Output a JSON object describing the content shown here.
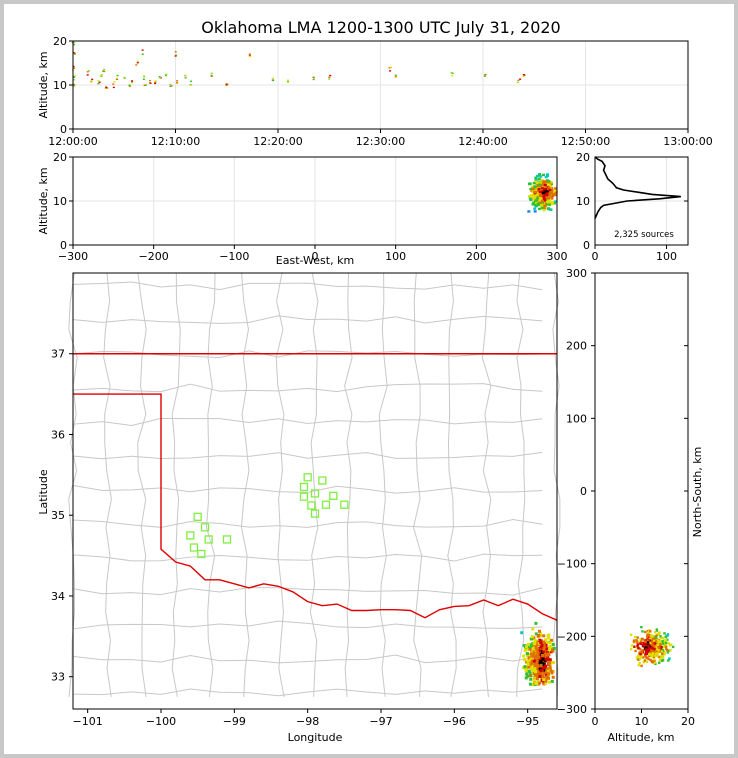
{
  "title": "Oklahoma LMA 1200-1300 UTC July 31, 2020",
  "colors": {
    "state_border": "#e00000",
    "county_lines": "#c8c8c8",
    "histogram": "#000000",
    "station_marker": "#80ee40",
    "density_scale": [
      "#2080e0",
      "#00c8c8",
      "#30c030",
      "#e0e000",
      "#e07000",
      "#d00000",
      "#000000"
    ]
  },
  "chart_data": [
    {
      "id": "time-height",
      "type": "scatter",
      "xlabel": "",
      "ylabel": "Altitude, km",
      "x_ticks": [
        "12:00:00",
        "12:10:00",
        "12:20:00",
        "12:30:00",
        "12:40:00",
        "12:50:00",
        "13:00:00"
      ],
      "xlim_minutes": [
        0,
        60
      ],
      "ylim": [
        0,
        20
      ],
      "y_ticks": [
        0,
        10,
        20
      ],
      "grid": true,
      "note_points_minutes_altitude": [
        [
          0.1,
          19.5
        ],
        [
          0.1,
          17
        ],
        [
          0.1,
          14
        ],
        [
          0.1,
          12
        ],
        [
          0.1,
          10.5
        ],
        [
          0.1,
          9.5
        ],
        [
          1.5,
          13
        ],
        [
          1.8,
          11
        ],
        [
          2.5,
          10.5
        ],
        [
          2.8,
          12
        ],
        [
          3,
          13.5
        ],
        [
          3.3,
          9.5
        ],
        [
          4,
          10
        ],
        [
          4.3,
          11.5
        ],
        [
          5,
          12
        ],
        [
          5.5,
          10
        ],
        [
          5.8,
          11
        ],
        [
          6.2,
          15
        ],
        [
          6.8,
          17.5
        ],
        [
          7,
          12
        ],
        [
          7,
          10
        ],
        [
          7.5,
          11
        ],
        [
          8,
          10.5
        ],
        [
          8.5,
          11.5
        ],
        [
          9,
          12
        ],
        [
          9.5,
          10
        ],
        [
          10,
          17
        ],
        [
          10.2,
          11
        ],
        [
          11,
          12
        ],
        [
          11.5,
          10.5
        ],
        [
          13.5,
          12.5
        ],
        [
          15,
          10
        ],
        [
          17.2,
          17
        ],
        [
          19.5,
          11
        ],
        [
          21,
          11
        ],
        [
          23.5,
          11.5
        ],
        [
          25,
          12
        ],
        [
          31,
          13.5
        ],
        [
          31.5,
          12
        ],
        [
          37,
          12.5
        ],
        [
          40.3,
          12
        ],
        [
          43.5,
          11
        ],
        [
          44,
          12
        ]
      ]
    },
    {
      "id": "ew-height",
      "type": "heatmap",
      "xlabel": "East-West, km",
      "ylabel": "Altitude, km",
      "xlim": [
        -300,
        300
      ],
      "x_ticks": [
        -300,
        -200,
        -100,
        0,
        100,
        200,
        300
      ],
      "ylim": [
        0,
        20
      ],
      "y_ticks": [
        0,
        10,
        20
      ],
      "grid": true
    },
    {
      "id": "altitude-histogram",
      "type": "line",
      "xlim": [
        0,
        130
      ],
      "x_ticks": [
        0,
        100
      ],
      "ylim": [
        0,
        20
      ],
      "y_ticks": [
        0,
        10,
        20
      ],
      "annotation": "2,325 sources",
      "profile_count_altitude": [
        [
          0,
          6
        ],
        [
          4,
          7.5
        ],
        [
          8,
          8.5
        ],
        [
          12,
          9
        ],
        [
          45,
          10
        ],
        [
          90,
          10.5
        ],
        [
          120,
          11
        ],
        [
          80,
          11.5
        ],
        [
          60,
          12
        ],
        [
          40,
          12.5
        ],
        [
          30,
          13
        ],
        [
          25,
          14
        ],
        [
          18,
          15
        ],
        [
          15,
          16
        ],
        [
          12,
          17
        ],
        [
          14,
          18
        ],
        [
          10,
          19
        ],
        [
          4,
          19.5
        ],
        [
          0,
          20
        ]
      ]
    },
    {
      "id": "plan-view",
      "type": "scatter",
      "xlabel": "Longitude",
      "ylabel": "Latitude",
      "xlim": [
        -101.2,
        -94.6
      ],
      "x_ticks": [
        -101,
        -100,
        -99,
        -98,
        -97,
        -96,
        -95
      ],
      "ylim": [
        32.6,
        38.0
      ],
      "y_ticks": [
        33,
        34,
        35,
        36,
        37
      ],
      "grid": false,
      "stations_lon_lat": [
        [
          -99.6,
          34.75
        ],
        [
          -99.55,
          34.6
        ],
        [
          -99.5,
          34.98
        ],
        [
          -99.45,
          34.52
        ],
        [
          -99.4,
          34.85
        ],
        [
          -99.35,
          34.7
        ],
        [
          -99.1,
          34.7
        ],
        [
          -98.05,
          35.23
        ],
        [
          -98.05,
          35.35
        ],
        [
          -98.0,
          35.47
        ],
        [
          -97.95,
          35.12
        ],
        [
          -97.9,
          35.27
        ],
        [
          -97.9,
          35.02
        ],
        [
          -97.8,
          35.43
        ],
        [
          -97.75,
          35.13
        ],
        [
          -97.65,
          35.24
        ],
        [
          -97.5,
          35.13
        ]
      ]
    },
    {
      "id": "height-ns",
      "type": "heatmap",
      "xlabel": "Altitude, km",
      "ylabel": "North-South, km",
      "xlim": [
        0,
        20
      ],
      "x_ticks": [
        0,
        10,
        20
      ],
      "ylim": [
        -300,
        300
      ],
      "y_ticks": [
        -300,
        -200,
        -100,
        0,
        100,
        200,
        300
      ],
      "grid": false
    }
  ]
}
